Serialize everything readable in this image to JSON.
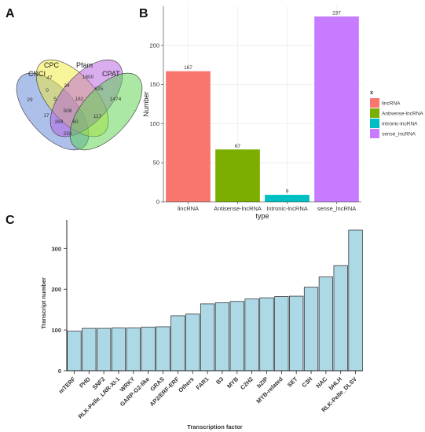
{
  "panels": {
    "a": "A",
    "b": "B",
    "c": "C"
  },
  "chart_data": [
    {
      "type": "venn",
      "sets": [
        "CNCI",
        "CPC",
        "Pfam",
        "CPAT"
      ],
      "region_values": [
        "29",
        "47",
        "1800",
        "1474",
        "0",
        "24",
        "625",
        "17",
        "5",
        "182",
        "117",
        "508",
        "269",
        "60",
        "233"
      ],
      "colors": [
        "#5b82d6",
        "#f2ea34",
        "#b65ce0",
        "#56d24a"
      ]
    },
    {
      "type": "bar",
      "xlabel": "type",
      "ylabel": "Number",
      "categories": [
        "lincRNA",
        "Antisense-lncRNA",
        "Intronic-lncRNA",
        "sense_lncRNA"
      ],
      "values": [
        167,
        67,
        9,
        237
      ],
      "ylim": [
        0,
        250
      ],
      "yticks": [
        0,
        50,
        100,
        150,
        200
      ],
      "colors": [
        "#f8766d",
        "#7cae00",
        "#00bfc4",
        "#c77cff"
      ],
      "legend": {
        "title": "x",
        "position": "right",
        "entries": [
          "lincRNA",
          "Antisense-lncRNA",
          "Intronic-lncRNA",
          "sense_lncRNA"
        ]
      },
      "grid": true
    },
    {
      "type": "bar",
      "xlabel": "Transcription factor",
      "ylabel": "Transcript number",
      "categories": [
        "mTERF",
        "PHD",
        "SNF2",
        "RLK-Pelle_LRR-XI-1",
        "WRKY",
        "GARP-G2-like",
        "GRAS",
        "AP2/ERF-ERF",
        "Others",
        "FAR1",
        "B3",
        "MYB",
        "C2H2",
        "bZIP",
        "MYB-related",
        "SET",
        "C3H",
        "NAC",
        "bHLH",
        "RLK-Pelle_DLSV"
      ],
      "values": [
        97,
        104,
        104,
        105,
        105,
        107,
        108,
        135,
        139,
        164,
        167,
        170,
        176,
        179,
        182,
        183,
        205,
        230,
        258,
        345
      ],
      "ylim": [
        0,
        370
      ],
      "yticks": [
        0,
        100,
        200,
        300
      ],
      "bar_color": "#add8e6",
      "grid": false
    }
  ]
}
